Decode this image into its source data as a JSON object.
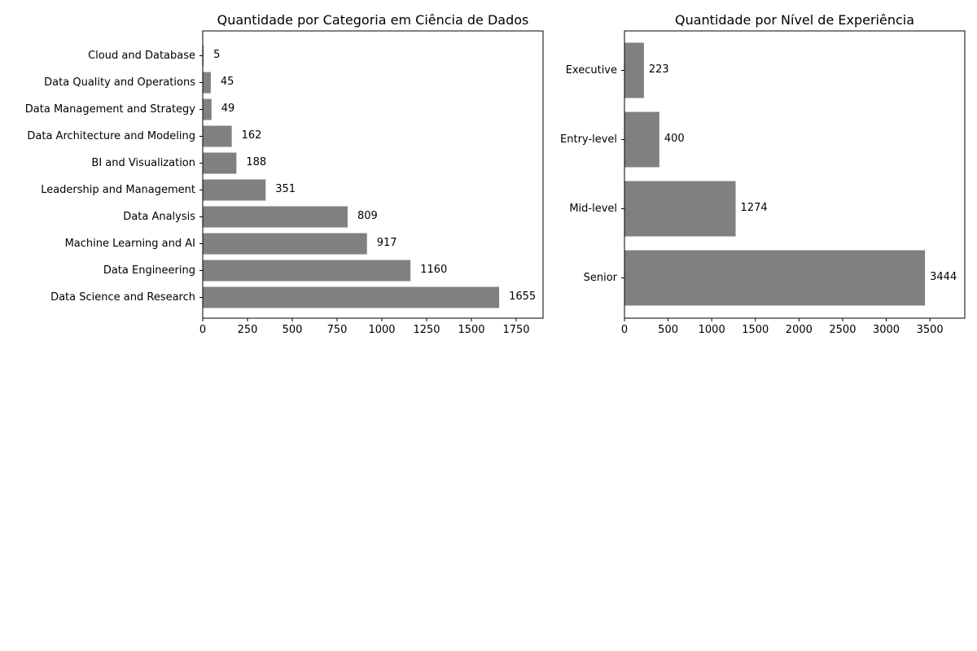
{
  "colors": {
    "bar": "#808080",
    "axis": "#000000",
    "background": "#ffffff"
  },
  "chart_data": [
    {
      "type": "bar",
      "orientation": "horizontal",
      "title": "Quantidade por Categoria em Ciência de Dados",
      "xlabel": "",
      "ylabel": "",
      "categories": [
        "Data Science and Research",
        "Data Engineering",
        "Machine Learning and AI",
        "Data Analysis",
        "Leadership and Management",
        "BI and Visualization",
        "Data Architecture and Modeling",
        "Data Management and Strategy",
        "Data Quality and Operations",
        "Cloud and Database"
      ],
      "values": [
        1655,
        1160,
        917,
        809,
        351,
        188,
        162,
        49,
        45,
        5
      ],
      "xlim": [
        0,
        1900
      ],
      "xticks": [
        0,
        250,
        500,
        750,
        1000,
        1250,
        1500,
        1750
      ],
      "grid": false,
      "legend": "none"
    },
    {
      "type": "bar",
      "orientation": "horizontal",
      "title": "Quantidade por Nível de Experiência",
      "xlabel": "",
      "ylabel": "",
      "categories": [
        "Senior",
        "Mid-level",
        "Entry-level",
        "Executive"
      ],
      "values": [
        3444,
        1274,
        400,
        223
      ],
      "xlim": [
        0,
        3900
      ],
      "xticks": [
        0,
        500,
        1000,
        1500,
        2000,
        2500,
        3000,
        3500
      ],
      "grid": false,
      "legend": "none"
    }
  ]
}
